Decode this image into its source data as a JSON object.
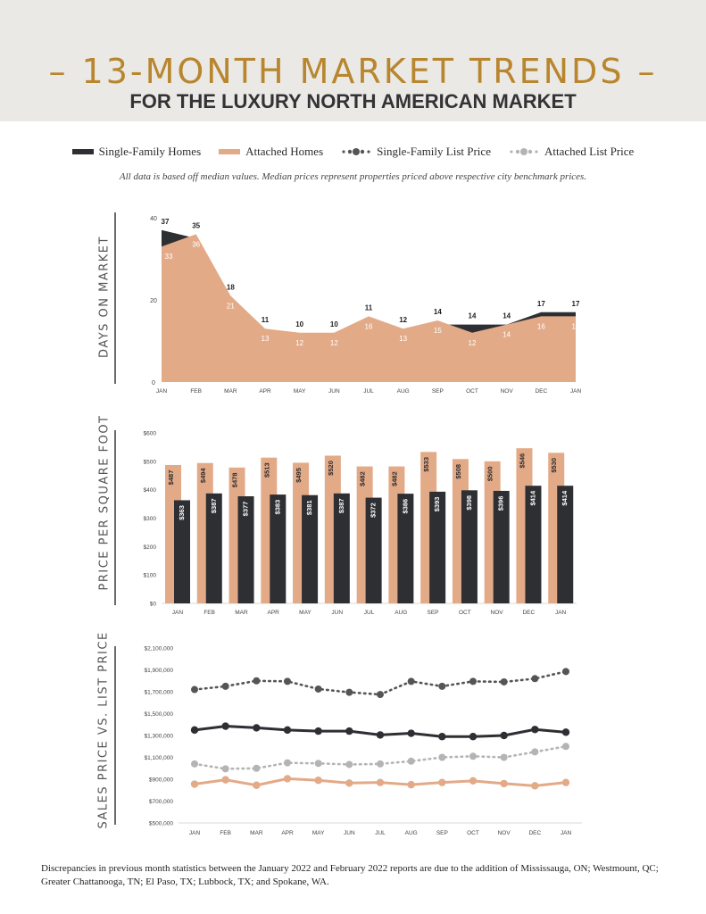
{
  "header": {
    "title": "– 13-MONTH MARKET TRENDS –",
    "subtitle": "FOR THE LUXURY NORTH AMERICAN MARKET"
  },
  "legend": {
    "single_family": "Single-Family Homes",
    "attached": "Attached Homes",
    "sf_list": "Single-Family List Price",
    "at_list": "Attached List Price"
  },
  "note": "All data is based off median values. Median prices represent properties priced above respective city benchmark prices.",
  "footer": "Discrepancies in previous month statistics between the January 2022 and February 2022 reports are due to the addition of Mississauga, ON; Westmount, QC; Greater Chattanooga, TN; El Paso, TX; Lubbock, TX; and Spokane, WA.",
  "colors": {
    "single_family": "#2e2f33",
    "attached": "#e3aa88",
    "attached_list": "#b4b4b4",
    "title": "#b8862e"
  },
  "chart_data": [
    {
      "type": "area",
      "title": "DAYS ON MARKET",
      "categories": [
        "JAN",
        "FEB",
        "MAR",
        "APR",
        "MAY",
        "JUN",
        "JUL",
        "AUG",
        "SEP",
        "OCT",
        "NOV",
        "DEC",
        "JAN"
      ],
      "ylim": [
        0,
        40
      ],
      "yticks": [
        "0",
        "20",
        "40"
      ],
      "series": [
        {
          "name": "Single-Family Homes",
          "values": [
            37,
            35,
            18,
            11,
            10,
            10,
            11,
            12,
            14,
            14,
            14,
            17,
            17
          ]
        },
        {
          "name": "Attached Homes",
          "values": [
            33,
            36,
            21,
            13,
            12,
            12,
            16,
            13,
            15,
            12,
            14,
            16,
            16
          ]
        }
      ]
    },
    {
      "type": "bar",
      "title": "PRICE PER SQUARE FOOT",
      "categories": [
        "JAN",
        "FEB",
        "MAR",
        "APR",
        "MAY",
        "JUN",
        "JUL",
        "AUG",
        "SEP",
        "OCT",
        "NOV",
        "DEC",
        "JAN"
      ],
      "ylim": [
        0,
        600
      ],
      "yticks": [
        "$0",
        "$100",
        "$200",
        "$300",
        "$400",
        "$500",
        "$600"
      ],
      "series": [
        {
          "name": "Attached Homes",
          "values": [
            487,
            494,
            478,
            513,
            495,
            520,
            482,
            482,
            533,
            508,
            500,
            546,
            530
          ],
          "labels": [
            "$487",
            "$494",
            "$478",
            "$513",
            "$495",
            "$520",
            "$482",
            "$482",
            "$533",
            "$508",
            "$500",
            "$546",
            "$530"
          ]
        },
        {
          "name": "Single-Family Homes",
          "values": [
            363,
            387,
            377,
            383,
            381,
            387,
            372,
            386,
            393,
            398,
            396,
            414,
            414
          ],
          "labels": [
            "$363",
            "$387",
            "$377",
            "$383",
            "$381",
            "$387",
            "$372",
            "$386",
            "$393",
            "$398",
            "$396",
            "$414",
            "$414"
          ]
        }
      ]
    },
    {
      "type": "line",
      "title": "SALES PRICE VS. LIST PRICE",
      "categories": [
        "JAN",
        "FEB",
        "MAR",
        "APR",
        "MAY",
        "JUN",
        "JUL",
        "AUG",
        "SEP",
        "OCT",
        "NOV",
        "DEC",
        "JAN"
      ],
      "ylim": [
        500000,
        2100000
      ],
      "yticks": [
        "$500,000",
        "$700,000",
        "$900,000",
        "$1,100,000",
        "$1,300,000",
        "$1,500,000",
        "$1,700,000",
        "$1,900,000",
        "$2,100,000"
      ],
      "series": [
        {
          "name": "Single-Family List Price",
          "style": "dotted",
          "values": [
            1720000,
            1750000,
            1800000,
            1795000,
            1725000,
            1695000,
            1675000,
            1795000,
            1750000,
            1795000,
            1790000,
            1820000,
            1885000
          ]
        },
        {
          "name": "Single-Family Homes",
          "style": "solid",
          "values": [
            1350000,
            1385000,
            1370000,
            1350000,
            1340000,
            1340000,
            1305000,
            1320000,
            1290000,
            1290000,
            1300000,
            1355000,
            1330000
          ]
        },
        {
          "name": "Attached List Price",
          "style": "dotted",
          "values": [
            1040000,
            995000,
            1000000,
            1050000,
            1045000,
            1035000,
            1040000,
            1065000,
            1100000,
            1110000,
            1100000,
            1150000,
            1200000
          ]
        },
        {
          "name": "Attached Homes",
          "style": "solid",
          "values": [
            855000,
            895000,
            845000,
            905000,
            890000,
            865000,
            870000,
            850000,
            870000,
            885000,
            860000,
            840000,
            870000
          ]
        }
      ]
    }
  ]
}
